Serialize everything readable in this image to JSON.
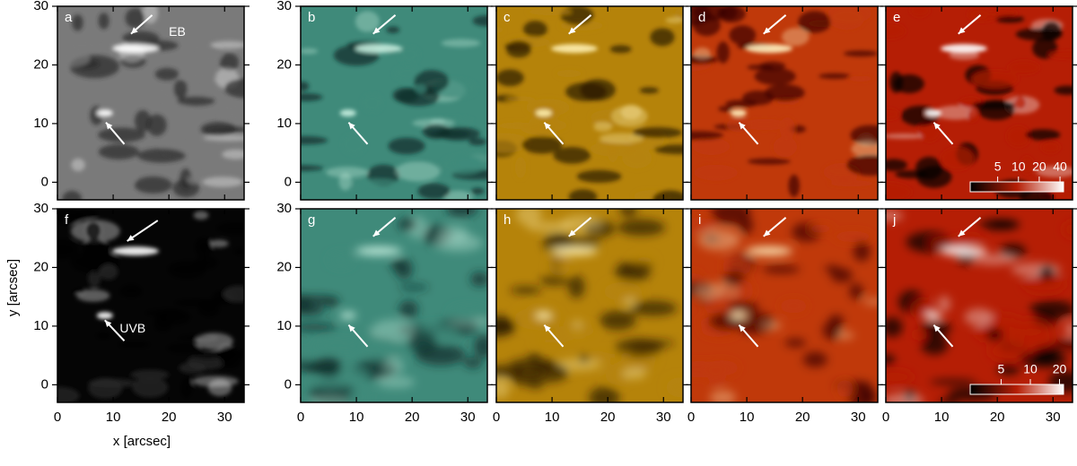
{
  "chart_data": [
    {
      "type": "image",
      "label": "a",
      "cmap": [
        "#2a2a2a",
        "#7a7a7a",
        "#ffffff"
      ],
      "xlim": [
        0,
        33.5
      ],
      "ylim": [
        -3,
        30
      ],
      "xticks": [
        0,
        10,
        20,
        30
      ],
      "yticks": [
        0,
        10,
        20,
        30
      ],
      "show_xtick_labels": false,
      "show_ytick_labels": true,
      "annotations": [
        "EB"
      ]
    },
    {
      "type": "image",
      "label": "b",
      "cmap": [
        "#0d2b26",
        "#3f8a7a",
        "#c8f0e0"
      ],
      "xlim": [
        0,
        33.5
      ],
      "ylim": [
        -3,
        30
      ],
      "xticks": [
        0,
        10,
        20,
        30
      ],
      "yticks": [
        0,
        10,
        20,
        30
      ],
      "show_xtick_labels": false,
      "show_ytick_labels": true
    },
    {
      "type": "image",
      "label": "c",
      "cmap": [
        "#2a1800",
        "#b5830a",
        "#fff0b0"
      ],
      "xlim": [
        0,
        33.5
      ],
      "ylim": [
        -3,
        30
      ],
      "xticks": [
        0,
        10,
        20,
        30
      ],
      "yticks": [
        0,
        10,
        20,
        30
      ],
      "show_xtick_labels": false,
      "show_ytick_labels": false
    },
    {
      "type": "image",
      "label": "d",
      "cmap": [
        "#3a0000",
        "#c0390a",
        "#fff1c0"
      ],
      "xlim": [
        0,
        33.5
      ],
      "ylim": [
        -3,
        30
      ],
      "xticks": [
        0,
        10,
        20,
        30
      ],
      "yticks": [
        0,
        10,
        20,
        30
      ],
      "show_xtick_labels": false,
      "show_ytick_labels": false
    },
    {
      "type": "image",
      "label": "e",
      "cmap": [
        "#000000",
        "#b51e05",
        "#ffffff"
      ],
      "xlim": [
        0,
        33.5
      ],
      "ylim": [
        -3,
        30
      ],
      "xticks": [
        0,
        10,
        20,
        30
      ],
      "yticks": [
        0,
        10,
        20,
        30
      ],
      "show_xtick_labels": false,
      "show_ytick_labels": false,
      "colorbar": {
        "lim": [
          2,
          45
        ],
        "ticks": [
          5,
          10,
          20,
          40
        ],
        "log": true
      }
    },
    {
      "type": "image",
      "label": "f",
      "cmap": [
        "#050505",
        "#2a2a2a",
        "#ffffff"
      ],
      "xlim": [
        0,
        33.5
      ],
      "ylim": [
        -3,
        30
      ],
      "xticks": [
        0,
        10,
        20,
        30
      ],
      "yticks": [
        0,
        10,
        20,
        30
      ],
      "show_xtick_labels": true,
      "show_ytick_labels": true,
      "annotations": [
        "UVB"
      ],
      "x_label": "x [arcsec]",
      "y_label": "y [arcsec]"
    },
    {
      "type": "image",
      "label": "g",
      "cmap": [
        "#0d2b26",
        "#3f8a7a",
        "#c8f0e0"
      ],
      "xlim": [
        0,
        33.5
      ],
      "ylim": [
        -3,
        30
      ],
      "xticks": [
        0,
        10,
        20,
        30
      ],
      "yticks": [
        0,
        10,
        20,
        30
      ],
      "show_xtick_labels": true,
      "show_ytick_labels": true
    },
    {
      "type": "image",
      "label": "h",
      "cmap": [
        "#2a1800",
        "#b5830a",
        "#fff0b0"
      ],
      "xlim": [
        0,
        33.5
      ],
      "ylim": [
        -3,
        30
      ],
      "xticks": [
        0,
        10,
        20,
        30
      ],
      "yticks": [
        0,
        10,
        20,
        30
      ],
      "show_xtick_labels": true,
      "show_ytick_labels": false
    },
    {
      "type": "image",
      "label": "i",
      "cmap": [
        "#3a0000",
        "#c0390a",
        "#fff1c0"
      ],
      "xlim": [
        0,
        33.5
      ],
      "ylim": [
        -3,
        30
      ],
      "xticks": [
        0,
        10,
        20,
        30
      ],
      "yticks": [
        0,
        10,
        20,
        30
      ],
      "show_xtick_labels": true,
      "show_ytick_labels": false
    },
    {
      "type": "image",
      "label": "j",
      "cmap": [
        "#000000",
        "#b51e05",
        "#ffffff"
      ],
      "xlim": [
        0,
        33.5
      ],
      "ylim": [
        -3,
        30
      ],
      "xticks": [
        0,
        10,
        20,
        30
      ],
      "yticks": [
        0,
        10,
        20,
        30
      ],
      "show_xtick_labels": true,
      "show_ytick_labels": false,
      "colorbar": {
        "lim": [
          2.4,
          22
        ],
        "ticks": [
          5,
          10,
          20
        ],
        "log": true
      }
    }
  ]
}
